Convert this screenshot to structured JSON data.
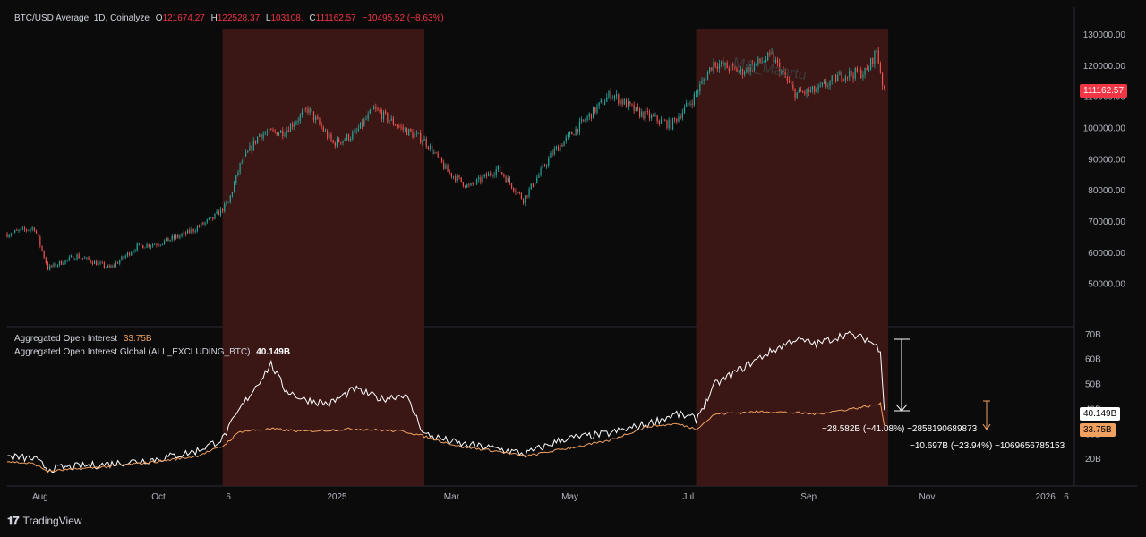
{
  "top_legend": {
    "symbol": "BTC/USD Average, 1D, Coinalyze",
    "open_key": "O",
    "open": "121674.27",
    "high_key": "H",
    "high": "122528.37",
    "low_key": "L",
    "low": "103108.",
    "close_key": "C",
    "close": "111162.57",
    "change": "−10495.52 (−8.63%)"
  },
  "bottom_legend": {
    "oi_label": "Aggregated Open Interest",
    "oi_value": "33.75B",
    "oi_global_label": "Aggregated Open Interest Global (ALL_EXCLUDING_BTC)",
    "oi_global_value": "40.149B"
  },
  "watermark": "MA_Maartu",
  "price_tag": "111162.57",
  "oi_tag_white": "40.149B",
  "oi_tag_orange": "33.75B",
  "annotation_white": "−28.582B (−41.08%) −2858190689873",
  "annotation_orange": "−10.697B (−23.94%) −1069656785153",
  "footer_brand": "TradingView",
  "colors": {
    "background": "#0b0b0b",
    "up": "#26a69a",
    "down": "#ef5350",
    "highlight": "#3a1714",
    "oi_white": "#ffffff",
    "oi_orange": "#f0a060",
    "price_tag_bg": "#f23645",
    "orange_tag_bg": "#f0a060"
  },
  "chart_data": [
    {
      "type": "line",
      "title": "BTC/USD Average, 1D, Coinalyze",
      "x_unit": "date",
      "x_ticks": [
        "Aug",
        "Oct",
        "6",
        "2025",
        "Mar",
        "May",
        "Jul",
        "Sep",
        "Nov",
        "2026",
        "6"
      ],
      "ylim": [
        42000,
        133000
      ],
      "y_ticks": [
        "50000.00",
        "60000.00",
        "70000.00",
        "80000.00",
        "90000.00",
        "100000.00",
        "110000.00",
        "120000.00",
        "130000.00"
      ],
      "series": [
        {
          "values_note_x": "date",
          "x": [
            "2024-07-15",
            "2024-07-29",
            "2024-08-05",
            "2024-08-20",
            "2024-09-06",
            "2024-09-20",
            "2024-10-01",
            "2024-10-15",
            "2024-10-29",
            "2024-11-06",
            "2024-11-12",
            "2024-11-22",
            "2024-12-05",
            "2024-12-17",
            "2024-12-30",
            "2025-01-10",
            "2025-01-20",
            "2025-02-03",
            "2025-02-15",
            "2025-02-27",
            "2025-03-10",
            "2025-03-25",
            "2025-04-07",
            "2025-04-22",
            "2025-05-08",
            "2025-05-22",
            "2025-06-05",
            "2025-06-22",
            "2025-07-03",
            "2025-07-14",
            "2025-07-28",
            "2025-08-13",
            "2025-08-25",
            "2025-09-05",
            "2025-09-18",
            "2025-10-01",
            "2025-10-06",
            "2025-10-10"
          ],
          "values": [
            66000,
            68000,
            55000,
            59000,
            55000,
            62000,
            63000,
            66000,
            71000,
            76000,
            88000,
            98000,
            99000,
            106000,
            95000,
            98000,
            106000,
            100000,
            96000,
            86000,
            81000,
            87000,
            77000,
            92000,
            102000,
            111000,
            105000,
            101000,
            109000,
            121000,
            118000,
            123000,
            111000,
            112000,
            117000,
            118000,
            125000,
            111162
          ]
        }
      ],
      "highlight_ranges": [
        [
          "2024-11-03",
          "2025-02-15"
        ],
        [
          "2025-07-05",
          "2025-10-12"
        ]
      ]
    },
    {
      "type": "line",
      "title": "Aggregated Open Interest",
      "x_unit": "date",
      "ylim": [
        12,
        73
      ],
      "y_ticks": [
        "20B",
        "30B",
        "40B",
        "50B",
        "60B",
        "70B"
      ],
      "y_unit": "B",
      "series": [
        {
          "name": "Aggregated Open Interest Global (ALL_EXCLUDING_BTC)",
          "x": [
            "2024-07-15",
            "2024-07-29",
            "2024-08-05",
            "2024-09-06",
            "2024-10-01",
            "2024-10-20",
            "2024-11-03",
            "2024-11-12",
            "2024-11-28",
            "2024-12-05",
            "2024-12-14",
            "2024-12-28",
            "2025-01-10",
            "2025-01-24",
            "2025-02-05",
            "2025-02-15",
            "2025-03-05",
            "2025-03-25",
            "2025-04-08",
            "2025-04-28",
            "2025-05-20",
            "2025-06-10",
            "2025-06-25",
            "2025-07-05",
            "2025-07-15",
            "2025-07-28",
            "2025-08-10",
            "2025-08-25",
            "2025-09-05",
            "2025-09-20",
            "2025-10-01",
            "2025-10-08",
            "2025-10-10"
          ],
          "values": [
            21,
            20,
            16,
            18,
            20,
            23,
            28,
            40,
            58,
            48,
            44,
            42,
            48,
            44,
            46,
            30,
            26,
            24,
            22,
            28,
            30,
            34,
            38,
            36,
            50,
            56,
            62,
            68,
            66,
            70,
            68,
            64,
            40.149
          ]
        },
        {
          "name": "Aggregated Open Interest",
          "x": [
            "2024-07-15",
            "2024-07-29",
            "2024-08-05",
            "2024-09-06",
            "2024-10-01",
            "2024-10-20",
            "2024-11-03",
            "2024-11-12",
            "2024-11-28",
            "2024-12-14",
            "2025-01-10",
            "2025-02-05",
            "2025-02-15",
            "2025-03-05",
            "2025-03-25",
            "2025-04-08",
            "2025-04-28",
            "2025-05-20",
            "2025-06-10",
            "2025-06-25",
            "2025-07-05",
            "2025-07-15",
            "2025-08-10",
            "2025-09-05",
            "2025-10-01",
            "2025-10-08",
            "2025-10-10"
          ],
          "values": [
            19,
            18,
            15,
            17,
            19,
            21,
            25,
            31,
            32,
            31,
            32,
            31,
            29,
            25,
            23,
            21,
            24,
            27,
            33,
            34,
            32,
            38,
            39,
            38,
            41,
            42,
            33.75
          ]
        }
      ],
      "highlight_ranges": [
        [
          "2024-11-03",
          "2025-02-15"
        ],
        [
          "2025-07-05",
          "2025-10-12"
        ]
      ]
    }
  ]
}
